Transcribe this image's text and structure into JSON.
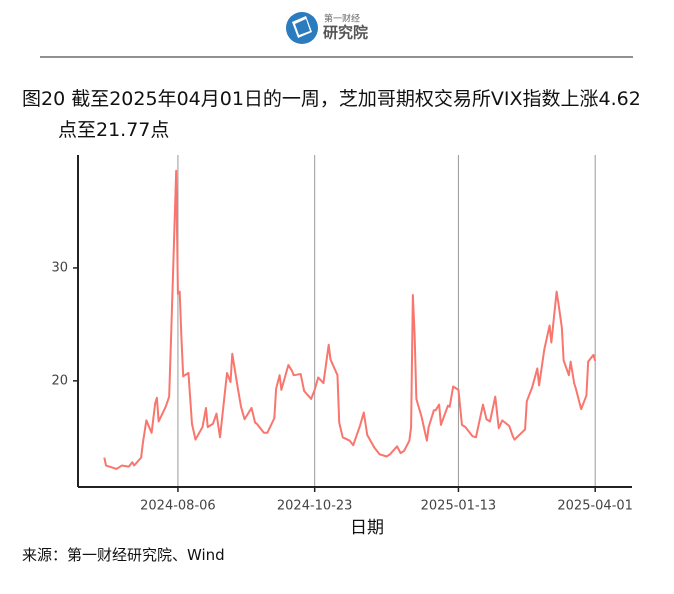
{
  "header": {
    "logo_top": "第一财经",
    "logo": "研究院"
  },
  "chart_data": {
    "type": "line",
    "title": "图20  截至2025年04月01日的一周，芝加哥期权交易所VIX指数上涨4.62点至21.77点",
    "source": "来源：第一财经研究院、Wind",
    "x_label": "日期",
    "xlim": [
      "2024-06-10",
      "2025-04-22"
    ],
    "xticks": [
      "2024-08-06",
      "2024-10-23",
      "2025-01-13",
      "2025-04-01"
    ],
    "ylim": [
      10.6,
      40
    ],
    "yticks": [
      20,
      30
    ],
    "grid": "x",
    "x": [
      "2024-06-25",
      "2024-06-26",
      "2024-06-28",
      "2024-07-02",
      "2024-07-05",
      "2024-07-09",
      "2024-07-11",
      "2024-07-12",
      "2024-07-16",
      "2024-07-17",
      "2024-07-19",
      "2024-07-22",
      "2024-07-24",
      "2024-07-25",
      "2024-07-26",
      "2024-07-30",
      "2024-08-01",
      "2024-08-02",
      "2024-08-05",
      "2024-08-06",
      "2024-08-07",
      "2024-08-08",
      "2024-08-09",
      "2024-08-12",
      "2024-08-14",
      "2024-08-16",
      "2024-08-20",
      "2024-08-22",
      "2024-08-23",
      "2024-08-26",
      "2024-08-28",
      "2024-08-30",
      "2024-09-03",
      "2024-09-05",
      "2024-09-06",
      "2024-09-09",
      "2024-09-11",
      "2024-09-13",
      "2024-09-17",
      "2024-09-19",
      "2024-09-20",
      "2024-09-24",
      "2024-09-26",
      "2024-09-30",
      "2024-10-01",
      "2024-10-03",
      "2024-10-04",
      "2024-10-08",
      "2024-10-10",
      "2024-10-11",
      "2024-10-15",
      "2024-10-17",
      "2024-10-21",
      "2024-10-23",
      "2024-10-25",
      "2024-10-28",
      "2024-10-31",
      "2024-11-01",
      "2024-11-05",
      "2024-11-06",
      "2024-11-08",
      "2024-11-12",
      "2024-11-14",
      "2024-11-18",
      "2024-11-20",
      "2024-11-22",
      "2024-11-26",
      "2024-11-29",
      "2024-12-03",
      "2024-12-05",
      "2024-12-09",
      "2024-12-11",
      "2024-12-13",
      "2024-12-16",
      "2024-12-17",
      "2024-12-18",
      "2024-12-19",
      "2024-12-20",
      "2024-12-23",
      "2024-12-26",
      "2024-12-27",
      "2024-12-30",
      "2024-12-31",
      "2025-01-02",
      "2025-01-03",
      "2025-01-07",
      "2025-01-08",
      "2025-01-10",
      "2025-01-13",
      "2025-01-15",
      "2025-01-17",
      "2025-01-21",
      "2025-01-23",
      "2025-01-27",
      "2025-01-29",
      "2025-01-31",
      "2025-02-03",
      "2025-02-05",
      "2025-02-07",
      "2025-02-11",
      "2025-02-13",
      "2025-02-14",
      "2025-02-18",
      "2025-02-20",
      "2025-02-21",
      "2025-02-24",
      "2025-02-27",
      "2025-02-28",
      "2025-03-03",
      "2025-03-04",
      "2025-03-06",
      "2025-03-07",
      "2025-03-10",
      "2025-03-11",
      "2025-03-13",
      "2025-03-14",
      "2025-03-17",
      "2025-03-18",
      "2025-03-20",
      "2025-03-21",
      "2025-03-24",
      "2025-03-26",
      "2025-03-27",
      "2025-03-28",
      "2025-03-31",
      "2025-04-01"
    ],
    "series": [
      {
        "color": "#f8766d",
        "values": [
          13.2,
          12.5,
          12.4,
          12.2,
          12.5,
          12.4,
          12.8,
          12.5,
          13.2,
          14.5,
          16.5,
          15.4,
          18.0,
          18.5,
          16.4,
          17.7,
          18.6,
          23.4,
          38.6,
          27.7,
          27.9,
          23.8,
          20.4,
          20.7,
          16.2,
          14.8,
          15.9,
          17.6,
          15.9,
          16.2,
          17.1,
          15.0,
          20.7,
          19.9,
          22.4,
          19.5,
          17.7,
          16.6,
          17.6,
          16.3,
          16.2,
          15.4,
          15.4,
          16.7,
          19.3,
          20.5,
          19.2,
          21.4,
          20.9,
          20.5,
          20.6,
          19.1,
          18.4,
          19.2,
          20.3,
          19.8,
          23.2,
          21.9,
          20.5,
          16.3,
          15.0,
          14.7,
          14.3,
          16.1,
          17.2,
          15.2,
          14.1,
          13.5,
          13.3,
          13.5,
          14.2,
          13.6,
          13.8,
          14.7,
          15.9,
          27.6,
          24.1,
          18.4,
          16.8,
          14.7,
          15.9,
          17.4,
          17.4,
          17.9,
          16.1,
          17.8,
          17.7,
          19.5,
          19.2,
          16.1,
          15.9,
          15.1,
          15.0,
          17.9,
          16.6,
          16.4,
          18.6,
          15.8,
          16.5,
          16.0,
          15.1,
          14.8,
          15.4,
          15.7,
          18.2,
          19.4,
          21.1,
          19.6,
          22.8,
          23.5,
          24.9,
          23.4,
          27.9,
          26.9,
          24.7,
          21.8,
          20.5,
          21.7,
          19.8,
          19.3,
          17.5,
          18.3,
          18.7,
          21.7,
          22.3,
          21.77
        ]
      }
    ]
  }
}
